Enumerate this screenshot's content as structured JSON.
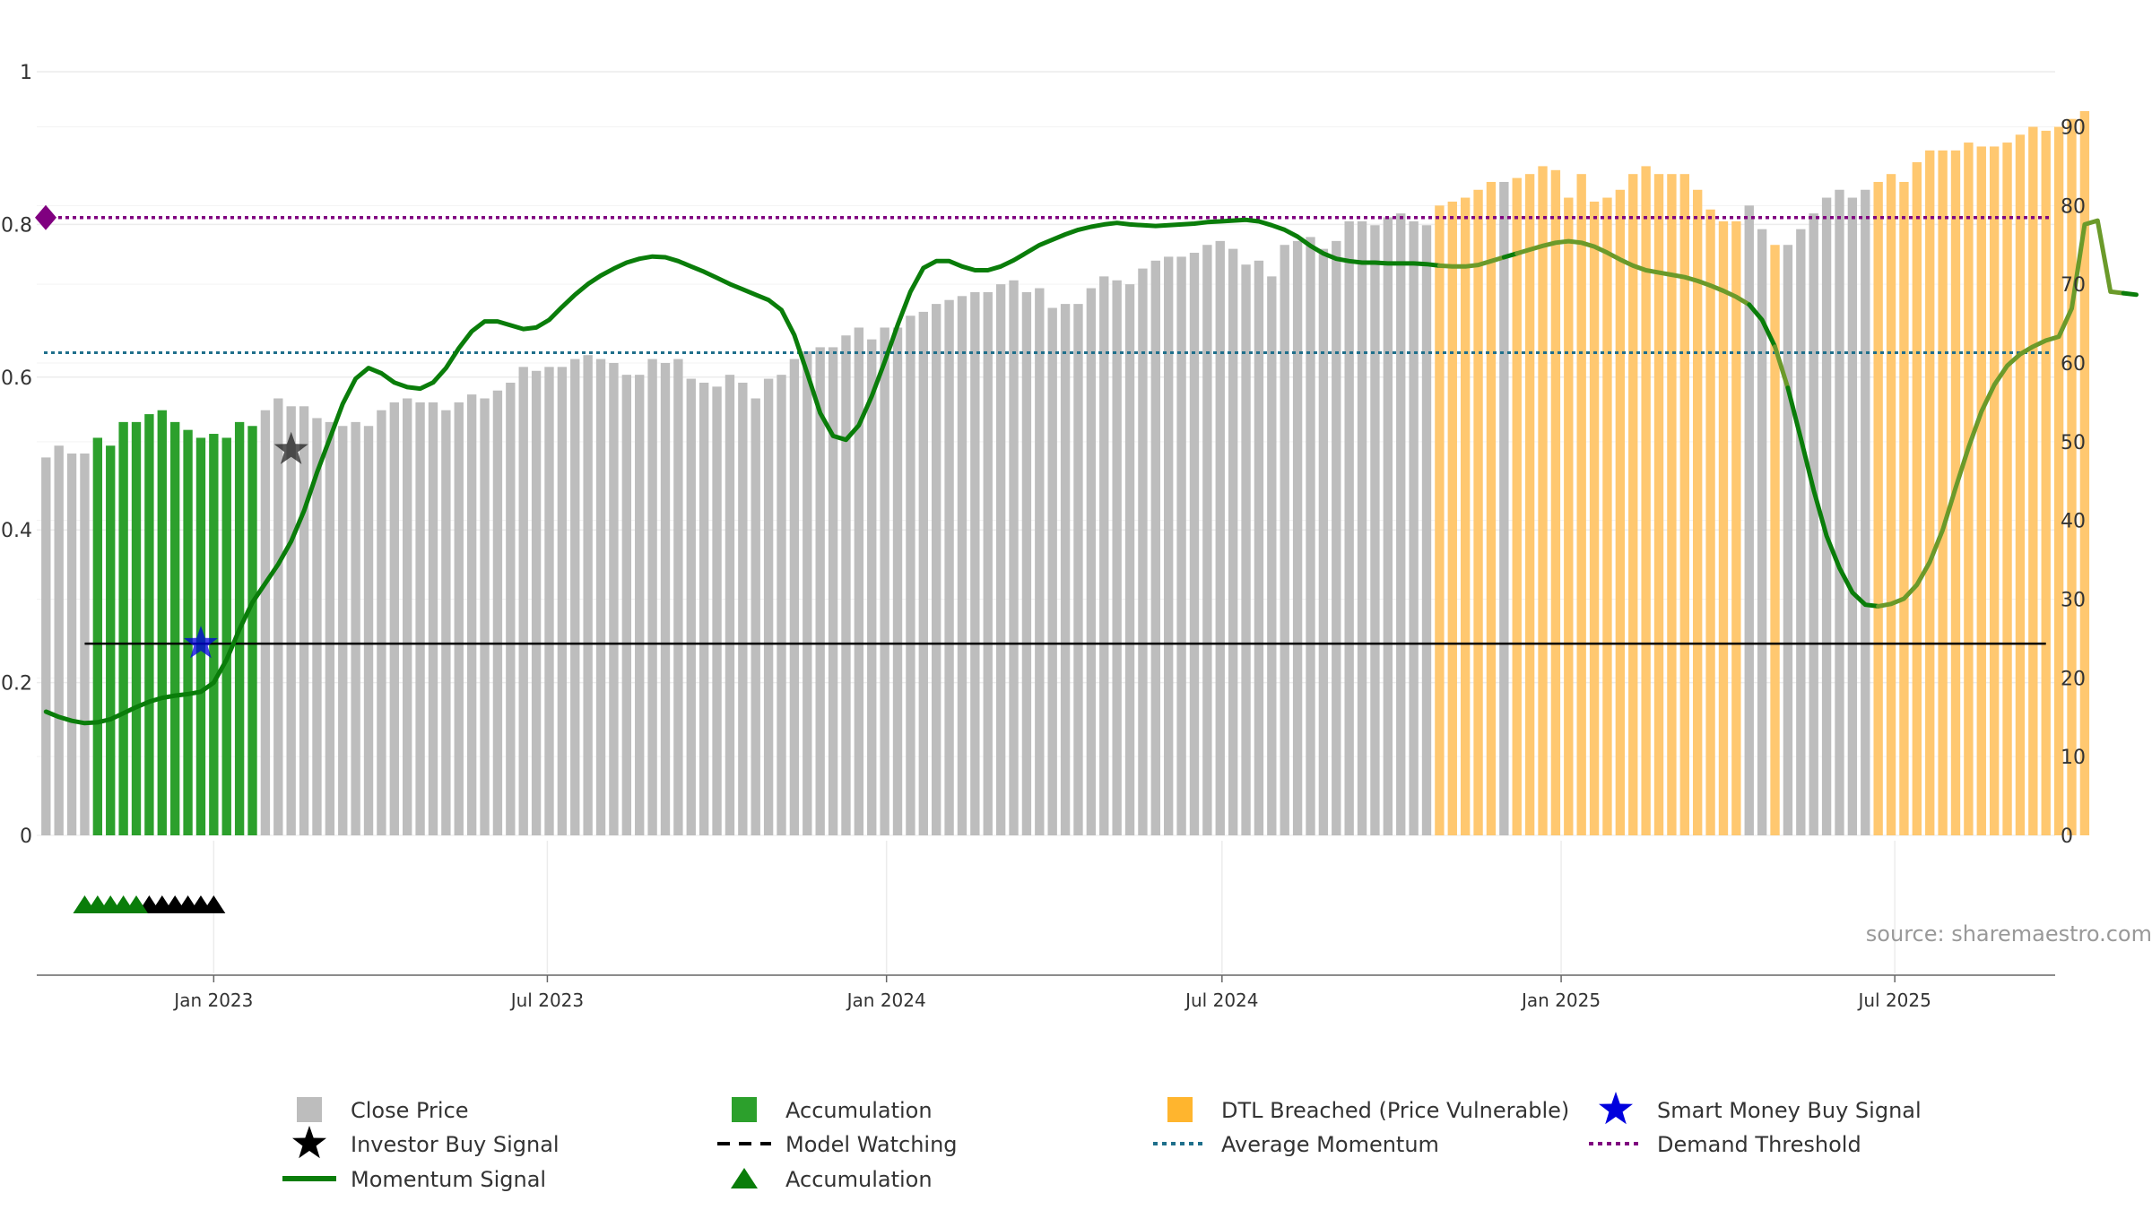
{
  "chart_data": {
    "type": "bar",
    "title": "",
    "source": "source: sharemaestro.com",
    "left_axis": {
      "ylim": [
        0,
        1
      ],
      "ticks": [
        "0",
        "0.2",
        "0.4",
        "0.6",
        "0.8",
        "1"
      ]
    },
    "right_axis": {
      "ylim": [
        0,
        97
      ],
      "ticks": [
        "0",
        "10",
        "20",
        "30",
        "40",
        "50",
        "60",
        "70",
        "80",
        "90"
      ]
    },
    "x_axis": {
      "range": [
        "2022-09-27",
        "2025-09-26"
      ],
      "ticks": [
        {
          "date": "2023-01-01",
          "label": "Jan 2023"
        },
        {
          "date": "2023-07-01",
          "label": "Jul 2023"
        },
        {
          "date": "2024-01-01",
          "label": "Jan 2024"
        },
        {
          "date": "2024-07-01",
          "label": "Jul 2024"
        },
        {
          "date": "2025-01-01",
          "label": "Jan 2025"
        },
        {
          "date": "2025-07-01",
          "label": "Jul 2025"
        }
      ]
    },
    "grid": true,
    "legend_position": "bottom",
    "colors": {
      "close": "#bdbdbd",
      "accumulation": "#2ca02c",
      "dtl": "#ffc870",
      "momentum": "#0a7d0a",
      "momentum_dtl": "#6b9a2a",
      "average_momentum": "#1f6f8b",
      "demand_threshold": "#800080",
      "model_watching": "#000000",
      "smart_money": "#0000dd",
      "investor": "#222222"
    },
    "first_week": "2022-10-02",
    "week_step_days": 7,
    "close_price": [
      48,
      49.5,
      48.5,
      48.5,
      50.5,
      49.5,
      52.5,
      52.5,
      53.5,
      54,
      52.5,
      51.5,
      50.5,
      51,
      50.5,
      52.5,
      52,
      54,
      55.5,
      54.5,
      54.5,
      53,
      52.5,
      52,
      52.5,
      52,
      54,
      55,
      55.5,
      55,
      55,
      54,
      55,
      56,
      55.5,
      56.5,
      57.5,
      59.5,
      59,
      59.5,
      59.5,
      60.5,
      61,
      60.5,
      60,
      58.5,
      58.5,
      60.5,
      60,
      60.5,
      58,
      57.5,
      57,
      58.5,
      57.5,
      55.5,
      58,
      58.5,
      60.5,
      61.5,
      62,
      62,
      63.5,
      64.5,
      63,
      64.5,
      64.5,
      66,
      66.5,
      67.5,
      68,
      68.5,
      69,
      69,
      70,
      70.5,
      69,
      69.5,
      67,
      67.5,
      67.5,
      69.5,
      71,
      70.5,
      70,
      72,
      73,
      73.5,
      73.5,
      74,
      75,
      75.5,
      74.5,
      72.5,
      73,
      71,
      75,
      75.5,
      76,
      74.5,
      75.5,
      78,
      78,
      77.5,
      78.5,
      79,
      78,
      77.5,
      80,
      80.5,
      81,
      82,
      83,
      83,
      83.5,
      84,
      85,
      84.5,
      81,
      84,
      80.5,
      81,
      82,
      84,
      85,
      84,
      84,
      84,
      82,
      79.5,
      78,
      78,
      80,
      77,
      75,
      75,
      77,
      79,
      81,
      82,
      81,
      82,
      83,
      84,
      83,
      85.5,
      87,
      87,
      87,
      88,
      87.5,
      87.5,
      88,
      89,
      90,
      89.5,
      90,
      91,
      92
    ],
    "accumulation_weeks": [
      4,
      16
    ],
    "dtl_weeks": [
      [
        108,
        112
      ],
      [
        114,
        131
      ],
      [
        134,
        134
      ],
      [
        142,
        160
      ]
    ],
    "momentum_signal": [
      0.162,
      0.155,
      0.15,
      0.147,
      0.148,
      0.152,
      0.16,
      0.168,
      0.175,
      0.18,
      0.183,
      0.185,
      0.188,
      0.2,
      0.23,
      0.27,
      0.305,
      0.33,
      0.355,
      0.385,
      0.425,
      0.475,
      0.52,
      0.565,
      0.598,
      0.612,
      0.605,
      0.593,
      0.587,
      0.585,
      0.593,
      0.612,
      0.638,
      0.66,
      0.673,
      0.673,
      0.668,
      0.663,
      0.665,
      0.675,
      0.692,
      0.708,
      0.722,
      0.733,
      0.742,
      0.75,
      0.755,
      0.758,
      0.757,
      0.752,
      0.745,
      0.738,
      0.73,
      0.722,
      0.715,
      0.708,
      0.701,
      0.688,
      0.655,
      0.605,
      0.553,
      0.523,
      0.518,
      0.537,
      0.575,
      0.62,
      0.668,
      0.712,
      0.743,
      0.752,
      0.752,
      0.745,
      0.74,
      0.74,
      0.745,
      0.753,
      0.763,
      0.773,
      0.78,
      0.787,
      0.793,
      0.797,
      0.8,
      0.802,
      0.8,
      0.799,
      0.798,
      0.799,
      0.8,
      0.801,
      0.803,
      0.804,
      0.805,
      0.806,
      0.804,
      0.799,
      0.793,
      0.784,
      0.772,
      0.762,
      0.755,
      0.752,
      0.75,
      0.75,
      0.749,
      0.749,
      0.749,
      0.748,
      0.746,
      0.745,
      0.745,
      0.747,
      0.752,
      0.757,
      0.762,
      0.767,
      0.772,
      0.776,
      0.778,
      0.776,
      0.771,
      0.763,
      0.754,
      0.746,
      0.74,
      0.737,
      0.734,
      0.731,
      0.726,
      0.72,
      0.713,
      0.705,
      0.695,
      0.675,
      0.64,
      0.586,
      0.52,
      0.452,
      0.392,
      0.35,
      0.318,
      0.302,
      0.3,
      0.303,
      0.31,
      0.328,
      0.358,
      0.4,
      0.455,
      0.508,
      0.555,
      0.59,
      0.615,
      0.63,
      0.64,
      0.648,
      0.653,
      0.69,
      0.8,
      0.805,
      0.712,
      0.71,
      0.708
    ],
    "average_momentum": 0.632,
    "demand_threshold": 0.809,
    "model_watching": {
      "level": 0.251,
      "start": "2022-10-23",
      "end": "2025-09-21"
    },
    "smart_money_buy_signals": [
      {
        "date": "2022-12-25",
        "value": 0.251
      }
    ],
    "investor_buy_signals": [
      {
        "date": "2023-02-12",
        "value": 0.505
      }
    ],
    "markers_row": {
      "accumulation": [
        "2022-10-23",
        "2022-10-30",
        "2022-11-06",
        "2022-11-13",
        "2022-11-20"
      ],
      "investor": [
        "2022-11-27",
        "2022-12-04",
        "2022-12-11",
        "2022-12-18",
        "2022-12-25",
        "2023-01-01"
      ]
    },
    "legend": [
      {
        "name": "Close Price",
        "symbol": "square",
        "color": "#bdbdbd"
      },
      {
        "name": "Accumulation",
        "symbol": "square",
        "color": "#2ca02c"
      },
      {
        "name": "DTL Breached (Price Vulnerable)",
        "symbol": "square",
        "color": "#ffb52e"
      },
      {
        "name": "Smart Money Buy Signal",
        "symbol": "star",
        "color": "#0000dd"
      },
      {
        "name": "Investor Buy Signal",
        "symbol": "star",
        "color": "#000000"
      },
      {
        "name": "Model Watching",
        "symbol": "dash",
        "color": "#000000"
      },
      {
        "name": "Average Momentum",
        "symbol": "dot",
        "color": "#1f6f8b"
      },
      {
        "name": "Demand Threshold",
        "symbol": "dot",
        "color": "#800080"
      },
      {
        "name": "Momentum Signal",
        "symbol": "line",
        "color": "#0a7d0a"
      },
      {
        "name": "Accumulation",
        "symbol": "triangle",
        "color": "#0a7d0a"
      }
    ]
  }
}
